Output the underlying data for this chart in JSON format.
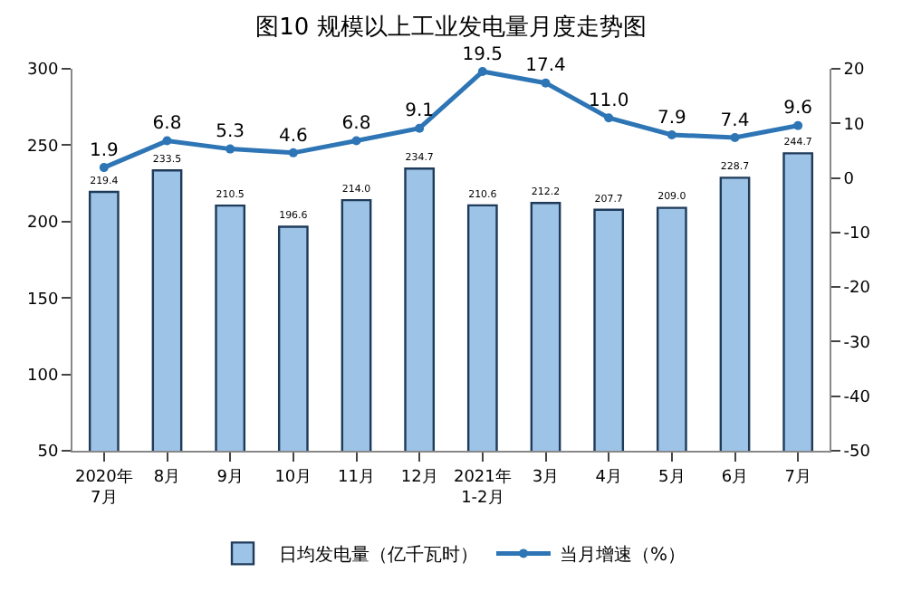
{
  "chart_data": {
    "type": "bar",
    "title": "图10 规模以上工业发电量月度走势图",
    "categories": [
      "2020年\n7月",
      "8月",
      "9月",
      "10月",
      "11月",
      "12月",
      "2021年\n1-2月",
      "3月",
      "4月",
      "5月",
      "6月",
      "7月"
    ],
    "series": [
      {
        "name": "日均发电量（亿千瓦时）",
        "color": "#9dc3e6",
        "values": [
          219.4,
          233.5,
          210.5,
          196.6,
          214.0,
          234.7,
          210.6,
          212.2,
          207.7,
          209.0,
          228.7,
          244.7
        ],
        "value_labels": [
          "219.4",
          "233.5",
          "210.5",
          "196.6",
          "214.0",
          "234.7",
          "210.6",
          "212.2",
          "207.7",
          "209.0",
          "228.7",
          "244.7"
        ]
      },
      {
        "name": "当月增速（%）",
        "type": "line",
        "axis": "y2",
        "color": "#2e75b6",
        "values": [
          1.9,
          6.8,
          5.3,
          4.6,
          6.8,
          9.1,
          19.5,
          17.4,
          11.0,
          7.9,
          7.4,
          9.6
        ],
        "value_labels": [
          "1.9",
          "6.8",
          "5.3",
          "4.6",
          "6.8",
          "9.1",
          "19.5",
          "17.4",
          "11.0",
          "7.9",
          "7.4",
          "9.6"
        ]
      }
    ],
    "ylim": [
      50,
      300
    ],
    "yticks": [
      50,
      100,
      150,
      200,
      250,
      300
    ],
    "y2lim": [
      -50,
      20
    ],
    "y2ticks": [
      -50,
      -40,
      -30,
      -20,
      -10,
      0,
      10,
      20
    ],
    "legend": "bottom",
    "marker": "circle",
    "line_style": "solid"
  }
}
